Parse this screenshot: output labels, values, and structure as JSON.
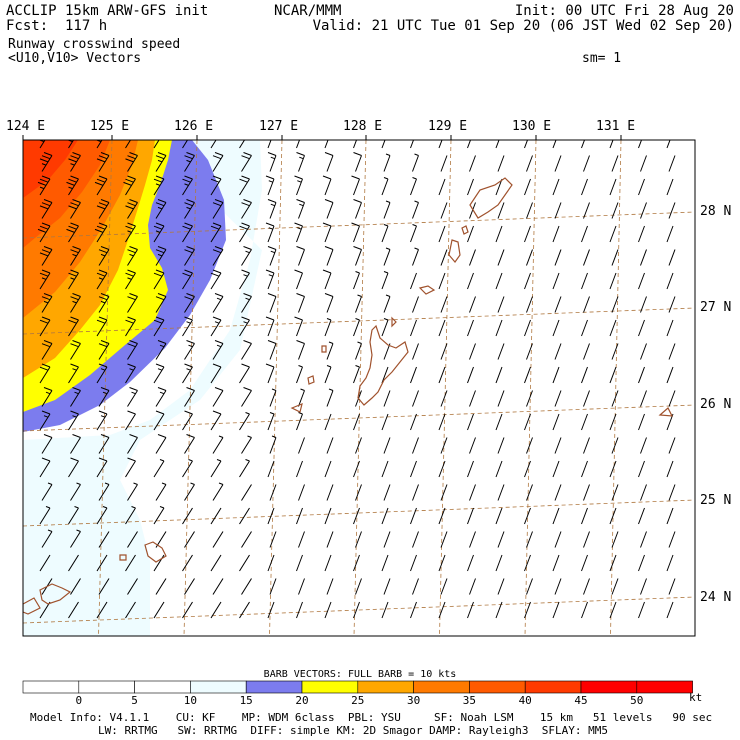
{
  "header": {
    "model_line": "ACCLIP 15km ARW-GFS init",
    "forecast": "Fcst:  117 h",
    "field_name": "Runway crosswind speed",
    "vectors": "<U10,V10> Vectors",
    "center": "NCAR/MMM",
    "init": "Init: 00 UTC Fri 28 Aug 20",
    "valid": "Valid: 21 UTC Tue 01 Sep 20 (06 JST Wed 02 Sep 20)",
    "smoothing": "sm= 1"
  },
  "map": {
    "lon_labels": [
      "124 E",
      "125 E",
      "126 E",
      "127 E",
      "128 E",
      "129 E",
      "130 E",
      "131 E"
    ],
    "lat_labels": [
      "28 N",
      "27 N",
      "26 N",
      "25 N",
      "24 N"
    ],
    "fill_colors": {
      "0-15": "#eefcff",
      "15-20": "#7c7cee",
      "20-25": "#ffff00",
      "25-30": "#ffa700",
      "30-35": "#ff7a00",
      "35-40": "#ff5a00",
      "40-45": "#ff3a00"
    },
    "coast_color": "#a0522d",
    "grid_color": "#b07840"
  },
  "colorbar": {
    "title": "BARB VECTORS:  FULL BARB = 10 kts",
    "ticks": [
      "0",
      "5",
      "10",
      "15",
      "20",
      "25",
      "30",
      "35",
      "40",
      "45",
      "50"
    ],
    "unit": "kt",
    "colors": [
      "#ffffff",
      "#ffffff",
      "#ffffff",
      "#eefcff",
      "#7c7cee",
      "#ffff00",
      "#ffa700",
      "#ff7a00",
      "#ff5a00",
      "#ff3a00",
      "#ff0000",
      "#ff0000"
    ]
  },
  "footer": {
    "line1": "Model Info: V4.1.1    CU: KF    MP: WDM 6class  PBL: YSU     SF: Noah LSM    15 km   51 levels   90 sec",
    "line2": "LW: RRTMG   SW: RRTMG  DIFF: simple KM: 2D Smagor DAMP: Rayleigh3  SFLAY: MM5"
  }
}
